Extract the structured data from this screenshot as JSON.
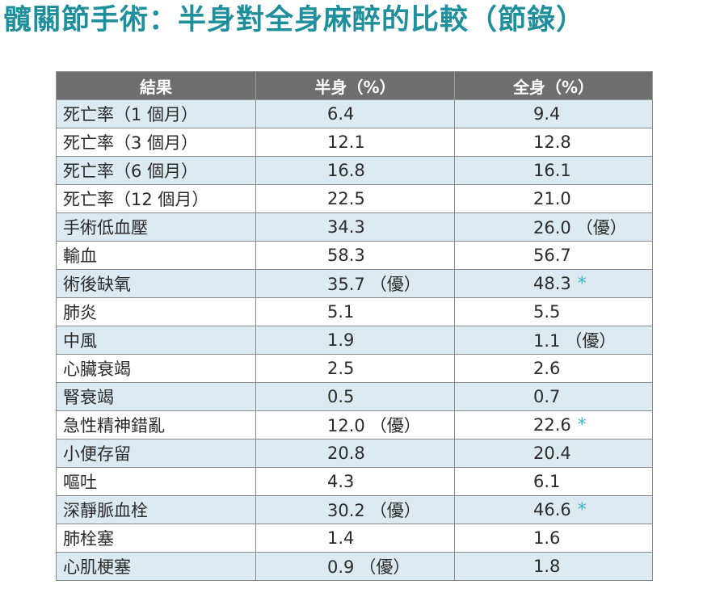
{
  "title": "髖關節手術：半身對全身麻醉的比較（節錄）",
  "colors": {
    "title": "#1f8f9c",
    "header_bg": "#6e6e6e",
    "row_alt_bg": "#dcebf3",
    "star": "#3bb8c8"
  },
  "table": {
    "headers": [
      "結果",
      "半身（%）",
      "全身（%）"
    ],
    "rows": [
      {
        "label": "死亡率（1 個月）",
        "half": "6.4",
        "half_note": "",
        "full": "9.4",
        "full_note": "",
        "full_star": ""
      },
      {
        "label": "死亡率（3 個月）",
        "half": "12.1",
        "half_note": "",
        "full": "12.8",
        "full_note": "",
        "full_star": ""
      },
      {
        "label": "死亡率（6 個月）",
        "half": "16.8",
        "half_note": "",
        "full": "16.1",
        "full_note": "",
        "full_star": ""
      },
      {
        "label": "死亡率（12 個月）",
        "half": "22.5",
        "half_note": "",
        "full": "21.0",
        "full_note": "",
        "full_star": ""
      },
      {
        "label": "手術低血壓",
        "half": "34.3",
        "half_note": "",
        "full": "26.0",
        "full_note": "（優）",
        "full_star": ""
      },
      {
        "label": "輸血",
        "half": "58.3",
        "half_note": "",
        "full": "56.7",
        "full_note": "",
        "full_star": ""
      },
      {
        "label": "術後缺氧",
        "half": "35.7",
        "half_note": "（優）",
        "full": "48.3",
        "full_note": "",
        "full_star": "*"
      },
      {
        "label": "肺炎",
        "half": "5.1",
        "half_note": "",
        "full": "5.5",
        "full_note": "",
        "full_star": ""
      },
      {
        "label": "中風",
        "half": "1.9",
        "half_note": "",
        "full": "1.1",
        "full_note": "（優）",
        "full_star": ""
      },
      {
        "label": "心臟衰竭",
        "half": "2.5",
        "half_note": "",
        "full": "2.6",
        "full_note": "",
        "full_star": ""
      },
      {
        "label": "腎衰竭",
        "half": "0.5",
        "half_note": "",
        "full": "0.7",
        "full_note": "",
        "full_star": ""
      },
      {
        "label": "急性精神錯亂",
        "half": "12.0",
        "half_note": "（優）",
        "full": "22.6",
        "full_note": "",
        "full_star": "*"
      },
      {
        "label": "小便存留",
        "half": "20.8",
        "half_note": "",
        "full": "20.4",
        "full_note": "",
        "full_star": ""
      },
      {
        "label": "嘔吐",
        "half": "4.3",
        "half_note": "",
        "full": "6.1",
        "full_note": "",
        "full_star": ""
      },
      {
        "label": "深靜脈血栓",
        "half": "30.2",
        "half_note": "（優）",
        "full": "46.6",
        "full_note": "",
        "full_star": "*"
      },
      {
        "label": "肺栓塞",
        "half": "1.4",
        "half_note": "",
        "full": "1.6",
        "full_note": "",
        "full_star": ""
      },
      {
        "label": "心肌梗塞",
        "half": "0.9",
        "half_note": "（優）",
        "full": "1.8",
        "full_note": "",
        "full_star": ""
      }
    ]
  }
}
